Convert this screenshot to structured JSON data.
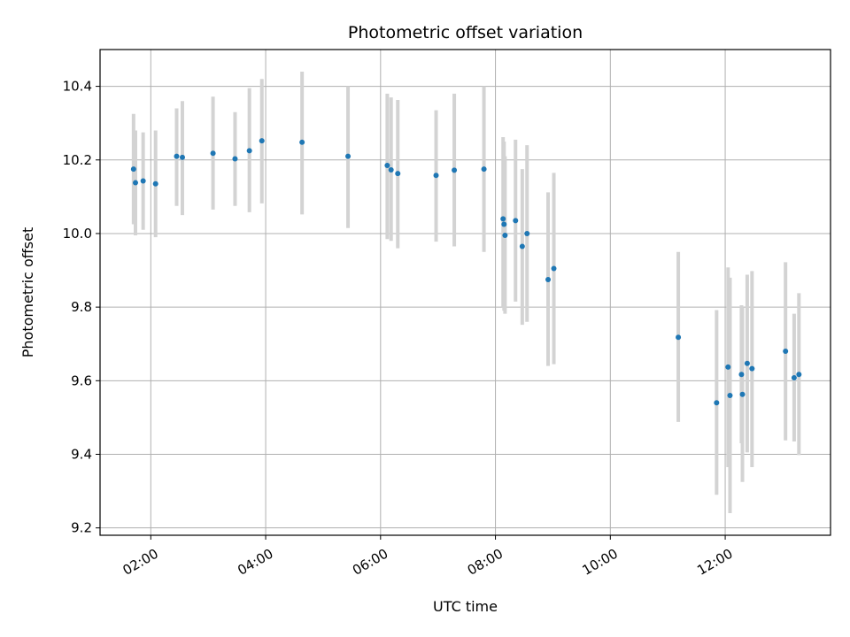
{
  "chart_data": {
    "type": "scatter",
    "title": "Photometric offset variation",
    "xlabel": "UTC time",
    "ylabel": "Photometric offset",
    "x_is_time": true,
    "xlim": [
      "01:07",
      "13:50"
    ],
    "ylim": [
      9.18,
      10.5
    ],
    "x_ticks": [
      "02:00",
      "04:00",
      "06:00",
      "08:00",
      "10:00",
      "12:00"
    ],
    "y_ticks": [
      9.2,
      9.4,
      9.6,
      9.8,
      10.0,
      10.2,
      10.4
    ],
    "y_tick_labels": [
      "9.2",
      "9.4",
      "9.6",
      "9.8",
      "10.0",
      "10.2",
      "10.4"
    ],
    "grid": true,
    "point_color": "#1f77b4",
    "errorbar_color": "#d3d3d3",
    "series": [
      {
        "points": [
          {
            "x": "01:42",
            "y": 10.175,
            "ylo": 10.025,
            "yhi": 10.325
          },
          {
            "x": "01:44",
            "y": 10.138,
            "ylo": 9.995,
            "yhi": 10.28
          },
          {
            "x": "01:52",
            "y": 10.143,
            "ylo": 10.01,
            "yhi": 10.275
          },
          {
            "x": "02:05",
            "y": 10.135,
            "ylo": 9.99,
            "yhi": 10.28
          },
          {
            "x": "02:27",
            "y": 10.21,
            "ylo": 10.075,
            "yhi": 10.34
          },
          {
            "x": "02:33",
            "y": 10.207,
            "ylo": 10.05,
            "yhi": 10.36
          },
          {
            "x": "03:05",
            "y": 10.218,
            "ylo": 10.065,
            "yhi": 10.372
          },
          {
            "x": "03:28",
            "y": 10.203,
            "ylo": 10.075,
            "yhi": 10.33
          },
          {
            "x": "03:43",
            "y": 10.225,
            "ylo": 10.058,
            "yhi": 10.395
          },
          {
            "x": "03:56",
            "y": 10.252,
            "ylo": 10.082,
            "yhi": 10.42
          },
          {
            "x": "04:38",
            "y": 10.248,
            "ylo": 10.052,
            "yhi": 10.44
          },
          {
            "x": "05:26",
            "y": 10.21,
            "ylo": 10.015,
            "yhi": 10.4
          },
          {
            "x": "06:07",
            "y": 10.185,
            "ylo": 9.985,
            "yhi": 10.38
          },
          {
            "x": "06:11",
            "y": 10.173,
            "ylo": 9.98,
            "yhi": 10.37
          },
          {
            "x": "06:18",
            "y": 10.163,
            "ylo": 9.96,
            "yhi": 10.363
          },
          {
            "x": "06:58",
            "y": 10.158,
            "ylo": 9.978,
            "yhi": 10.335
          },
          {
            "x": "07:17",
            "y": 10.172,
            "ylo": 9.965,
            "yhi": 10.38
          },
          {
            "x": "07:48",
            "y": 10.175,
            "ylo": 9.95,
            "yhi": 10.4
          },
          {
            "x": "08:08",
            "y": 10.04,
            "ylo": 9.8,
            "yhi": 10.262
          },
          {
            "x": "08:09",
            "y": 10.025,
            "ylo": 9.79,
            "yhi": 10.25
          },
          {
            "x": "08:10",
            "y": 9.995,
            "ylo": 9.782,
            "yhi": 10.21
          },
          {
            "x": "08:21",
            "y": 10.035,
            "ylo": 9.815,
            "yhi": 10.255
          },
          {
            "x": "08:28",
            "y": 9.965,
            "ylo": 9.752,
            "yhi": 10.175
          },
          {
            "x": "08:33",
            "y": 10.0,
            "ylo": 9.76,
            "yhi": 10.24
          },
          {
            "x": "08:55",
            "y": 9.875,
            "ylo": 9.64,
            "yhi": 10.112
          },
          {
            "x": "09:01",
            "y": 9.905,
            "ylo": 9.645,
            "yhi": 10.165
          },
          {
            "x": "11:11",
            "y": 9.718,
            "ylo": 9.488,
            "yhi": 9.95
          },
          {
            "x": "11:51",
            "y": 9.54,
            "ylo": 9.29,
            "yhi": 9.792
          },
          {
            "x": "12:03",
            "y": 9.637,
            "ylo": 9.365,
            "yhi": 9.908
          },
          {
            "x": "12:05",
            "y": 9.56,
            "ylo": 9.24,
            "yhi": 9.88
          },
          {
            "x": "12:17",
            "y": 9.617,
            "ylo": 9.43,
            "yhi": 9.805
          },
          {
            "x": "12:18",
            "y": 9.563,
            "ylo": 9.325,
            "yhi": 9.8
          },
          {
            "x": "12:23",
            "y": 9.647,
            "ylo": 9.405,
            "yhi": 9.888
          },
          {
            "x": "12:28",
            "y": 9.633,
            "ylo": 9.365,
            "yhi": 9.898
          },
          {
            "x": "13:03",
            "y": 9.68,
            "ylo": 9.438,
            "yhi": 9.922
          },
          {
            "x": "13:12",
            "y": 9.608,
            "ylo": 9.435,
            "yhi": 9.782
          },
          {
            "x": "13:17",
            "y": 9.617,
            "ylo": 9.398,
            "yhi": 9.838
          }
        ]
      }
    ]
  }
}
